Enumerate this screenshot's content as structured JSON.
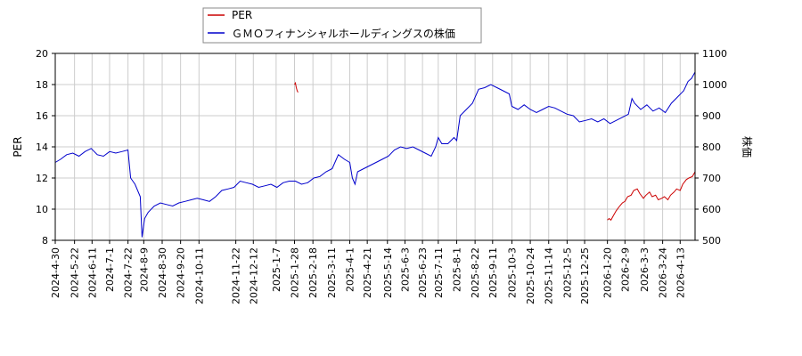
{
  "chart_data": {
    "type": "line",
    "legend": {
      "placement": "top-center",
      "entries": [
        "PER",
        "ＧＭＯフィナンシャルホールディングスの株価"
      ]
    },
    "colors": {
      "per": "#cc0000",
      "price": "#0000cc",
      "grid": "#cccccc",
      "axis": "#000000"
    },
    "grid": true,
    "y_left": {
      "label": "PER",
      "range": [
        8,
        20
      ],
      "ticks": [
        8,
        10,
        12,
        14,
        16,
        18,
        20
      ]
    },
    "y_right": {
      "label": "株価",
      "range": [
        500,
        1100
      ],
      "ticks": [
        500,
        600,
        700,
        800,
        900,
        1000,
        1100
      ]
    },
    "x_range": [
      "2024-04-30",
      "2026-04-30"
    ],
    "x_ticks": [
      "2024-4-30",
      "2024-5-22",
      "2024-6-11",
      "2024-7-1",
      "2024-7-22",
      "2024-8-9",
      "2024-8-30",
      "2024-9-20",
      "2024-10-11",
      "2024-11-22",
      "2024-12-12",
      "2025-1-7",
      "2025-1-28",
      "2025-2-18",
      "2025-3-11",
      "2025-4-1",
      "2025-4-21",
      "2025-5-14",
      "2025-6-3",
      "2025-6-23",
      "2025-7-11",
      "2025-8-1",
      "2025-8-22",
      "2025-9-11",
      "2025-10-3",
      "2025-10-24",
      "2025-11-14",
      "2025-12-5",
      "2025-12-25",
      "2026-1-20",
      "2026-2-9",
      "2026-3-3",
      "2026-3-24",
      "2026-4-13"
    ],
    "series": [
      {
        "name": "PER",
        "axis": "left",
        "segments": [
          [
            [
              "2025-01-28",
              18.0
            ],
            [
              "2025-01-29",
              18.1
            ],
            [
              "2025-01-30",
              17.8
            ],
            [
              "2025-01-31",
              17.6
            ],
            [
              "2025-02-01",
              17.5
            ]
          ],
          [
            [
              "2026-01-20",
              9.3
            ],
            [
              "2026-01-22",
              9.4
            ],
            [
              "2026-01-24",
              9.3
            ],
            [
              "2026-01-27",
              9.6
            ],
            [
              "2026-01-30",
              9.9
            ],
            [
              "2026-02-03",
              10.2
            ],
            [
              "2026-02-06",
              10.4
            ],
            [
              "2026-02-09",
              10.5
            ],
            [
              "2026-02-12",
              10.8
            ],
            [
              "2026-02-16",
              10.9
            ],
            [
              "2026-02-19",
              11.2
            ],
            [
              "2026-02-23",
              11.3
            ],
            [
              "2026-02-26",
              11.0
            ],
            [
              "2026-03-02",
              10.7
            ],
            [
              "2026-03-05",
              10.9
            ],
            [
              "2026-03-09",
              11.1
            ],
            [
              "2026-03-12",
              10.8
            ],
            [
              "2026-03-16",
              10.9
            ],
            [
              "2026-03-19",
              10.6
            ],
            [
              "2026-03-23",
              10.7
            ],
            [
              "2026-03-26",
              10.8
            ],
            [
              "2026-03-30",
              10.6
            ],
            [
              "2026-04-02",
              10.9
            ],
            [
              "2026-04-06",
              11.1
            ],
            [
              "2026-04-09",
              11.3
            ],
            [
              "2026-04-13",
              11.2
            ],
            [
              "2026-04-16",
              11.6
            ],
            [
              "2026-04-20",
              11.9
            ],
            [
              "2026-04-23",
              12.0
            ],
            [
              "2026-04-27",
              12.1
            ],
            [
              "2026-04-30",
              12.4
            ]
          ]
        ]
      },
      {
        "name": "ＧＭＯフィナンシャルホールディングスの株価",
        "axis": "right",
        "points": [
          [
            "2024-04-30",
            750
          ],
          [
            "2024-05-06",
            760
          ],
          [
            "2024-05-13",
            775
          ],
          [
            "2024-05-20",
            780
          ],
          [
            "2024-05-27",
            770
          ],
          [
            "2024-06-03",
            785
          ],
          [
            "2024-06-10",
            795
          ],
          [
            "2024-06-17",
            775
          ],
          [
            "2024-06-24",
            770
          ],
          [
            "2024-07-01",
            785
          ],
          [
            "2024-07-08",
            780
          ],
          [
            "2024-07-15",
            785
          ],
          [
            "2024-07-22",
            790
          ],
          [
            "2024-07-25",
            700
          ],
          [
            "2024-07-30",
            680
          ],
          [
            "2024-08-05",
            640
          ],
          [
            "2024-08-07",
            510
          ],
          [
            "2024-08-10",
            570
          ],
          [
            "2024-08-14",
            590
          ],
          [
            "2024-08-21",
            610
          ],
          [
            "2024-08-28",
            620
          ],
          [
            "2024-09-04",
            615
          ],
          [
            "2024-09-11",
            610
          ],
          [
            "2024-09-18",
            620
          ],
          [
            "2024-09-25",
            625
          ],
          [
            "2024-10-02",
            630
          ],
          [
            "2024-10-09",
            635
          ],
          [
            "2024-10-16",
            630
          ],
          [
            "2024-10-23",
            625
          ],
          [
            "2024-10-30",
            640
          ],
          [
            "2024-11-06",
            660
          ],
          [
            "2024-11-13",
            665
          ],
          [
            "2024-11-20",
            670
          ],
          [
            "2024-11-27",
            690
          ],
          [
            "2024-12-04",
            685
          ],
          [
            "2024-12-11",
            680
          ],
          [
            "2024-12-18",
            670
          ],
          [
            "2024-12-25",
            675
          ],
          [
            "2025-01-01",
            680
          ],
          [
            "2025-01-08",
            670
          ],
          [
            "2025-01-15",
            685
          ],
          [
            "2025-01-22",
            690
          ],
          [
            "2025-01-29",
            690
          ],
          [
            "2025-02-05",
            680
          ],
          [
            "2025-02-12",
            685
          ],
          [
            "2025-02-19",
            700
          ],
          [
            "2025-02-26",
            705
          ],
          [
            "2025-03-05",
            720
          ],
          [
            "2025-03-12",
            730
          ],
          [
            "2025-03-19",
            775
          ],
          [
            "2025-03-26",
            760
          ],
          [
            "2025-04-01",
            750
          ],
          [
            "2025-04-04",
            700
          ],
          [
            "2025-04-07",
            680
          ],
          [
            "2025-04-10",
            720
          ],
          [
            "2025-04-17",
            730
          ],
          [
            "2025-04-24",
            740
          ],
          [
            "2025-05-01",
            750
          ],
          [
            "2025-05-08",
            760
          ],
          [
            "2025-05-15",
            770
          ],
          [
            "2025-05-22",
            790
          ],
          [
            "2025-05-29",
            800
          ],
          [
            "2025-06-05",
            795
          ],
          [
            "2025-06-12",
            800
          ],
          [
            "2025-06-19",
            790
          ],
          [
            "2025-06-26",
            780
          ],
          [
            "2025-07-03",
            770
          ],
          [
            "2025-07-08",
            800
          ],
          [
            "2025-07-11",
            830
          ],
          [
            "2025-07-15",
            810
          ],
          [
            "2025-07-22",
            810
          ],
          [
            "2025-07-29",
            830
          ],
          [
            "2025-08-01",
            820
          ],
          [
            "2025-08-05",
            900
          ],
          [
            "2025-08-12",
            920
          ],
          [
            "2025-08-19",
            940
          ],
          [
            "2025-08-26",
            985
          ],
          [
            "2025-09-02",
            990
          ],
          [
            "2025-09-09",
            1000
          ],
          [
            "2025-09-16",
            990
          ],
          [
            "2025-09-23",
            980
          ],
          [
            "2025-09-30",
            970
          ],
          [
            "2025-10-03",
            930
          ],
          [
            "2025-10-10",
            920
          ],
          [
            "2025-10-17",
            935
          ],
          [
            "2025-10-24",
            920
          ],
          [
            "2025-10-31",
            910
          ],
          [
            "2025-11-07",
            920
          ],
          [
            "2025-11-14",
            930
          ],
          [
            "2025-11-21",
            925
          ],
          [
            "2025-11-28",
            915
          ],
          [
            "2025-12-05",
            905
          ],
          [
            "2025-12-12",
            900
          ],
          [
            "2025-12-19",
            880
          ],
          [
            "2025-12-26",
            885
          ],
          [
            "2026-01-02",
            890
          ],
          [
            "2026-01-09",
            880
          ],
          [
            "2026-01-16",
            890
          ],
          [
            "2026-01-23",
            875
          ],
          [
            "2026-01-30",
            885
          ],
          [
            "2026-02-06",
            895
          ],
          [
            "2026-02-13",
            905
          ],
          [
            "2026-02-17",
            955
          ],
          [
            "2026-02-20",
            940
          ],
          [
            "2026-02-27",
            920
          ],
          [
            "2026-03-06",
            935
          ],
          [
            "2026-03-13",
            915
          ],
          [
            "2026-03-20",
            925
          ],
          [
            "2026-03-27",
            910
          ],
          [
            "2026-04-03",
            940
          ],
          [
            "2026-04-10",
            960
          ],
          [
            "2026-04-17",
            980
          ],
          [
            "2026-04-22",
            1010
          ],
          [
            "2026-04-26",
            1020
          ],
          [
            "2026-04-30",
            1040
          ]
        ]
      }
    ]
  }
}
